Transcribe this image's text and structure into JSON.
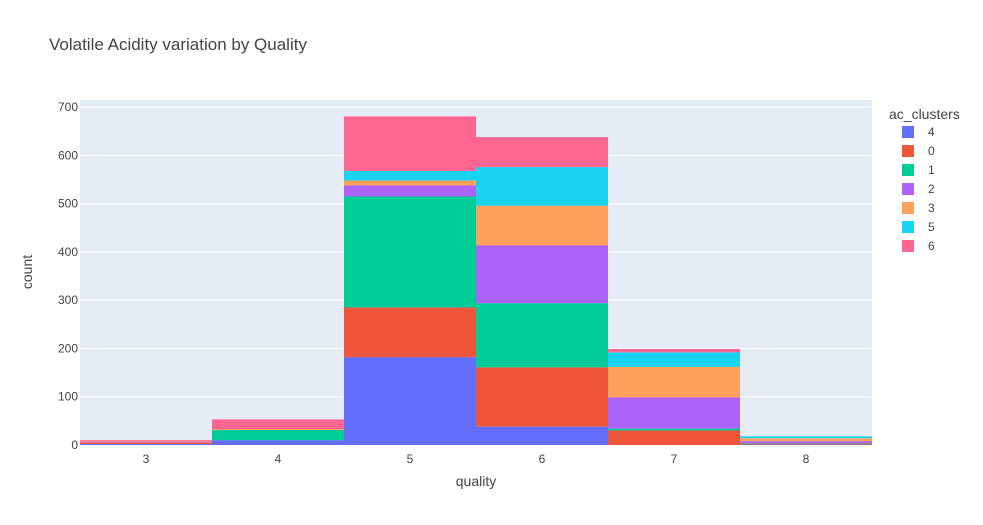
{
  "chart_data": {
    "type": "bar",
    "barmode": "stack",
    "title": "Volatile Acidity variation by Quality",
    "xlabel": "quality",
    "ylabel": "count",
    "categories": [
      "3",
      "4",
      "5",
      "6",
      "7",
      "8"
    ],
    "ylim": [
      0,
      715
    ],
    "yticks": [
      0,
      100,
      200,
      300,
      400,
      500,
      600,
      700
    ],
    "grid": true,
    "legend_position": "top-right",
    "legend_title": "ac_clusters",
    "series": [
      {
        "name": "4",
        "color": "#636efa",
        "values": [
          2,
          10,
          182,
          38,
          0,
          1
        ]
      },
      {
        "name": "0",
        "color": "#EF553B",
        "values": [
          3,
          0,
          103,
          123,
          30,
          2
        ]
      },
      {
        "name": "1",
        "color": "#00cc96",
        "values": [
          0,
          21,
          230,
          133,
          4,
          1
        ]
      },
      {
        "name": "2",
        "color": "#ab63fa",
        "values": [
          1,
          0,
          23,
          120,
          65,
          4
        ]
      },
      {
        "name": "3",
        "color": "#FFA15A",
        "values": [
          1,
          2,
          10,
          82,
          63,
          6
        ]
      },
      {
        "name": "5",
        "color": "#19d3f3",
        "values": [
          0,
          0,
          20,
          80,
          30,
          4
        ]
      },
      {
        "name": "6",
        "color": "#FF6692",
        "values": [
          3,
          20,
          113,
          62,
          7,
          0
        ]
      }
    ]
  }
}
